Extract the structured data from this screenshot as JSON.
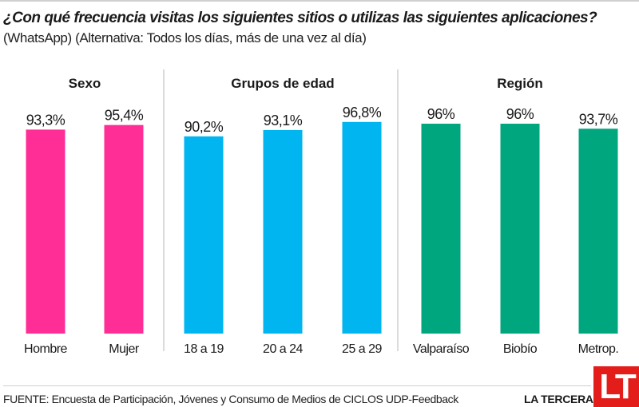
{
  "header": {
    "title": "¿Con qué frecuencia visitas los siguientes sitios o utilizas las siguientes aplicaciones?",
    "subtitle": "(WhatsApp) (Alternativa: Todos los días, más de una vez al día)"
  },
  "footer": {
    "source": "FUENTE: Encuesta de Participación, Jóvenes y Consumo de Medios de CICLOS UDP-Feedback",
    "brand": "LA TERCERA",
    "logo": "LT"
  },
  "chart_data": {
    "type": "bar",
    "title": "¿Con qué frecuencia visitas los siguientes sitios o utilizas las siguientes aplicaciones?",
    "subtitle": "(WhatsApp) (Alternativa: Todos los días, más de una vez al día)",
    "xlabel": "",
    "ylabel": "",
    "ylim": [
      0,
      100
    ],
    "grid": false,
    "groups": [
      {
        "name": "Sexo",
        "color": "#ff2d96",
        "categories": [
          "Hombre",
          "Mujer"
        ],
        "values": [
          93.3,
          95.4
        ],
        "labels": [
          "93,3%",
          "95,4%"
        ]
      },
      {
        "name": "Grupos de edad",
        "color": "#00b5f0",
        "categories": [
          "18 a 19",
          "20 a 24",
          "25 a 29"
        ],
        "values": [
          90.2,
          93.1,
          96.8
        ],
        "labels": [
          "90,2%",
          "93,1%",
          "96,8%"
        ]
      },
      {
        "name": "Región",
        "color": "#00a67e",
        "categories": [
          "Valparaíso",
          "Biobío",
          "Metrop."
        ],
        "values": [
          96,
          96,
          93.7
        ],
        "labels": [
          "96%",
          "96%",
          "93,7%"
        ]
      }
    ]
  }
}
